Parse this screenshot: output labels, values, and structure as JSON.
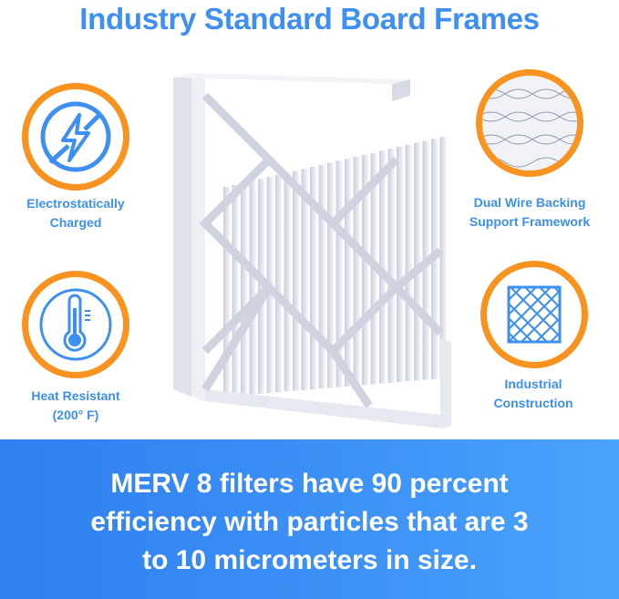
{
  "title": "Industry Standard Board Frames",
  "features": [
    {
      "label_line1": "Electrostatically",
      "label_line2": "Charged",
      "icon": "lightning-no-static-icon"
    },
    {
      "label_line1": "Heat Resistant",
      "label_line2": "(200° F)",
      "icon": "thermometer-icon"
    },
    {
      "label_line1": "Dual Wire Backing",
      "label_line2": "Support Framework",
      "icon": "wire-mesh-closeup-icon"
    },
    {
      "label_line1": "Industrial",
      "label_line2": "Construction",
      "icon": "grid-frame-icon"
    }
  ],
  "banner": {
    "line1": "MERV 8 filters have 90 percent",
    "line2": "efficiency with particles that are 3",
    "line3": "to 10 micrometers in size."
  },
  "colors": {
    "accent_blue": "#3d8ff2",
    "ring_orange": "#f7931e",
    "banner_blue": "#3b8ff5"
  }
}
